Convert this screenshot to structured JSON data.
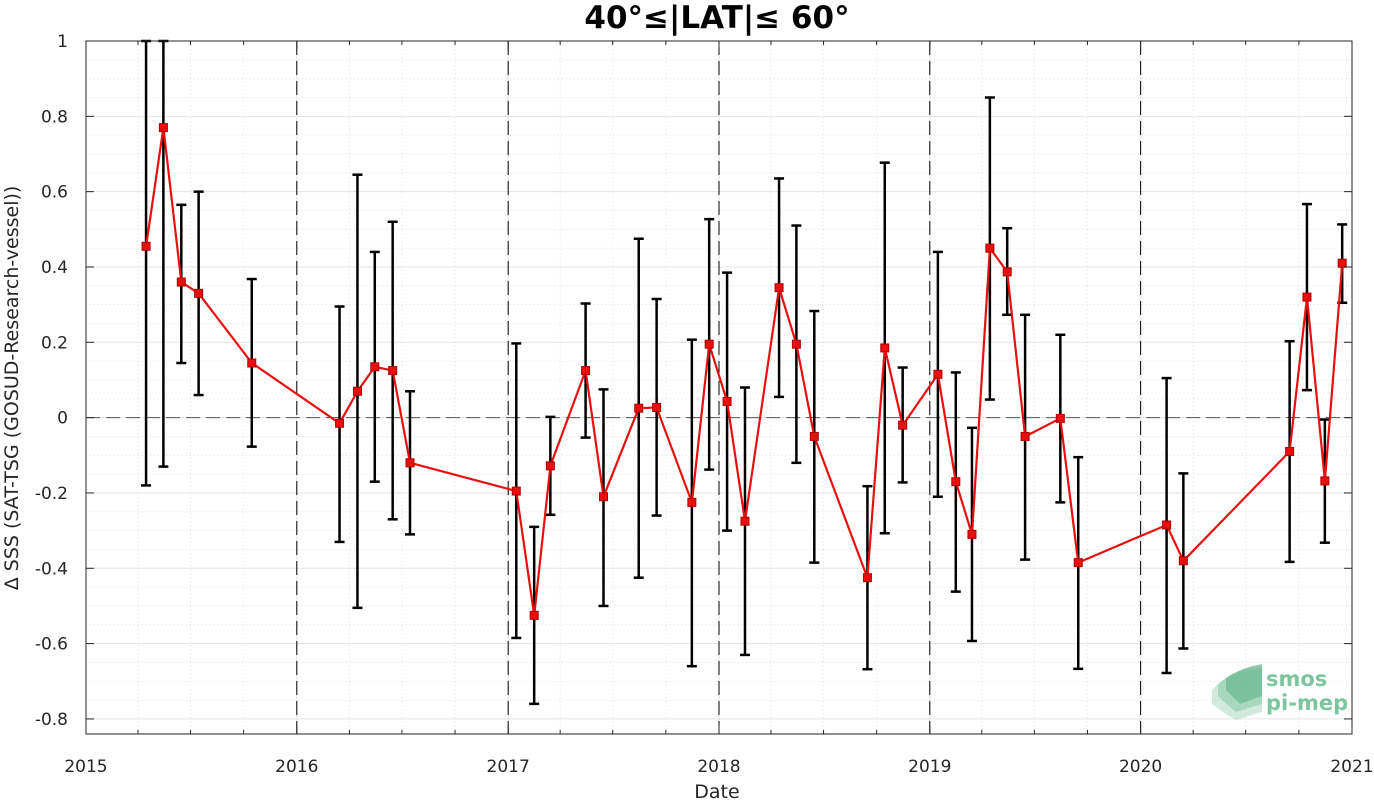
{
  "chart_data": {
    "type": "line",
    "title": "40°≤|LAT|≤ 60°",
    "xlabel": "Date",
    "ylabel": "Δ SSS (SAT-TSG (GOSUD-Research-vessel))",
    "xlim": [
      "2015-01-01",
      "2021-01-01"
    ],
    "ylim": [
      -0.84,
      1.0
    ],
    "x_ticks": [
      "2015",
      "2016",
      "2017",
      "2018",
      "2019",
      "2020",
      "2021"
    ],
    "y_ticks": [
      "1",
      "0.8",
      "0.6",
      "0.4",
      "0.2",
      "0",
      "-0.2",
      "-0.4",
      "-0.6",
      "-0.8"
    ],
    "grid": true,
    "line_color": "#e8100f",
    "errorbar_color": "#000000",
    "reference_line_y": 0,
    "year_boundaries": [
      "2016-01-01",
      "2017-01-01",
      "2018-01-01",
      "2019-01-01",
      "2020-01-01"
    ],
    "points": [
      {
        "date": "2015-04-15",
        "y": 0.455,
        "lo": -0.18,
        "hi": 1.0
      },
      {
        "date": "2015-05-15",
        "y": 0.77,
        "lo": -0.13,
        "hi": 1.0
      },
      {
        "date": "2015-06-15",
        "y": 0.36,
        "lo": 0.145,
        "hi": 0.565
      },
      {
        "date": "2015-07-15",
        "y": 0.33,
        "lo": 0.06,
        "hi": 0.6
      },
      {
        "date": "2015-10-15",
        "y": 0.145,
        "lo": -0.077,
        "hi": 0.368
      },
      {
        "date": "2016-03-15",
        "y": -0.015,
        "lo": -0.33,
        "hi": 0.295
      },
      {
        "date": "2016-04-15",
        "y": 0.07,
        "lo": -0.505,
        "hi": 0.645
      },
      {
        "date": "2016-05-15",
        "y": 0.135,
        "lo": -0.17,
        "hi": 0.44
      },
      {
        "date": "2016-06-15",
        "y": 0.125,
        "lo": -0.27,
        "hi": 0.52
      },
      {
        "date": "2016-07-15",
        "y": -0.12,
        "lo": -0.31,
        "hi": 0.07
      },
      {
        "date": "2017-01-15",
        "y": -0.195,
        "lo": -0.585,
        "hi": 0.197
      },
      {
        "date": "2017-02-15",
        "y": -0.525,
        "lo": -0.76,
        "hi": -0.29
      },
      {
        "date": "2017-03-15",
        "y": -0.128,
        "lo": -0.258,
        "hi": 0.002
      },
      {
        "date": "2017-05-15",
        "y": 0.125,
        "lo": -0.053,
        "hi": 0.303
      },
      {
        "date": "2017-06-15",
        "y": -0.21,
        "lo": -0.5,
        "hi": 0.075
      },
      {
        "date": "2017-08-15",
        "y": 0.025,
        "lo": -0.425,
        "hi": 0.475
      },
      {
        "date": "2017-09-15",
        "y": 0.027,
        "lo": -0.26,
        "hi": 0.315
      },
      {
        "date": "2017-11-15",
        "y": -0.225,
        "lo": -0.66,
        "hi": 0.207
      },
      {
        "date": "2017-12-15",
        "y": 0.195,
        "lo": -0.138,
        "hi": 0.527
      },
      {
        "date": "2018-01-15",
        "y": 0.043,
        "lo": -0.3,
        "hi": 0.385
      },
      {
        "date": "2018-02-15",
        "y": -0.275,
        "lo": -0.63,
        "hi": 0.08
      },
      {
        "date": "2018-04-15",
        "y": 0.345,
        "lo": 0.055,
        "hi": 0.635
      },
      {
        "date": "2018-05-15",
        "y": 0.195,
        "lo": -0.12,
        "hi": 0.51
      },
      {
        "date": "2018-06-15",
        "y": -0.05,
        "lo": -0.385,
        "hi": 0.283
      },
      {
        "date": "2018-09-15",
        "y": -0.425,
        "lo": -0.668,
        "hi": -0.182
      },
      {
        "date": "2018-10-15",
        "y": 0.185,
        "lo": -0.307,
        "hi": 0.677
      },
      {
        "date": "2018-11-15",
        "y": -0.02,
        "lo": -0.172,
        "hi": 0.133
      },
      {
        "date": "2019-01-15",
        "y": 0.115,
        "lo": -0.21,
        "hi": 0.44
      },
      {
        "date": "2019-02-15",
        "y": -0.17,
        "lo": -0.462,
        "hi": 0.12
      },
      {
        "date": "2019-03-15",
        "y": -0.31,
        "lo": -0.593,
        "hi": -0.027
      },
      {
        "date": "2019-04-15",
        "y": 0.45,
        "lo": 0.048,
        "hi": 0.85
      },
      {
        "date": "2019-05-15",
        "y": 0.387,
        "lo": 0.273,
        "hi": 0.503
      },
      {
        "date": "2019-06-15",
        "y": -0.05,
        "lo": -0.377,
        "hi": 0.273
      },
      {
        "date": "2019-08-15",
        "y": -0.002,
        "lo": -0.225,
        "hi": 0.22
      },
      {
        "date": "2019-09-15",
        "y": -0.385,
        "lo": -0.667,
        "hi": -0.105
      },
      {
        "date": "2020-02-15",
        "y": -0.285,
        "lo": -0.678,
        "hi": 0.105
      },
      {
        "date": "2020-03-15",
        "y": -0.38,
        "lo": -0.613,
        "hi": -0.148
      },
      {
        "date": "2020-09-15",
        "y": -0.09,
        "lo": -0.383,
        "hi": 0.203
      },
      {
        "date": "2020-10-15",
        "y": 0.32,
        "lo": 0.073,
        "hi": 0.567
      },
      {
        "date": "2020-11-15",
        "y": -0.168,
        "lo": -0.332,
        "hi": -0.005
      },
      {
        "date": "2020-12-15",
        "y": 0.41,
        "lo": 0.305,
        "hi": 0.513
      }
    ]
  },
  "logo": {
    "line1": "smos",
    "line2": "pi-mep",
    "color": "#7dc4a0"
  }
}
